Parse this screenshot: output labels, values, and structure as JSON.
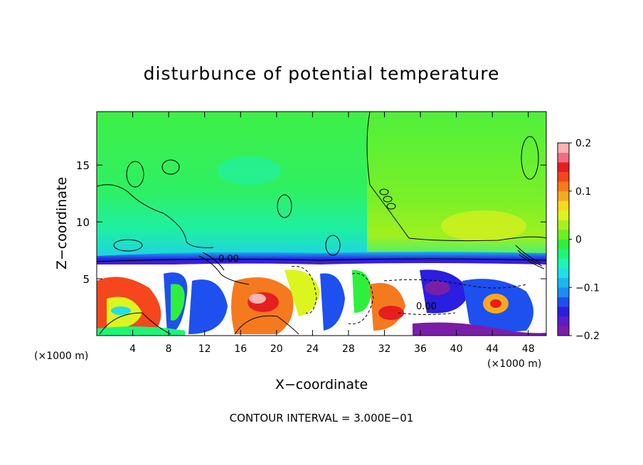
{
  "chart_data": {
    "type": "heatmap",
    "title": "disturbunce of potential temperature",
    "xlabel": "X−coordinate",
    "ylabel": "Z−coordinate",
    "x_unit": "(×1000 m)",
    "x_unit_left": "(×1000 m)",
    "x_ticks": [
      4,
      8,
      12,
      16,
      20,
      24,
      28,
      32,
      36,
      40,
      44,
      48
    ],
    "x_tick_labels": [
      "4",
      "8",
      "12",
      "16",
      "20",
      "24",
      "28",
      "32",
      "36",
      "40",
      "44",
      "48"
    ],
    "y_ticks": [
      5,
      10,
      15
    ],
    "y_tick_labels": [
      "5",
      "10",
      "15"
    ],
    "xlim": [
      0,
      50
    ],
    "ylim": [
      0,
      19.7
    ],
    "colorbar": {
      "min": -0.2,
      "max": 0.2,
      "ticks": [
        -0.2,
        -0.1,
        0,
        0.1,
        0.2
      ],
      "tick_labels": [
        "−0.2",
        "−0.1",
        "0",
        "0.1",
        "0.2"
      ],
      "colors": [
        "#7a1ea8",
        "#5a1ec8",
        "#2a1ee0",
        "#1e50f0",
        "#1e8cf5",
        "#19b8f0",
        "#1ee0e6",
        "#1ef5b4",
        "#1ef578",
        "#2ef03c",
        "#6ef01e",
        "#aaf01e",
        "#dcf51e",
        "#f5dc1e",
        "#f5aa1e",
        "#f57a1e",
        "#f5461e",
        "#e61e1e",
        "#f06e82",
        "#fab4b4"
      ]
    },
    "contour_labels": [
      {
        "text": "0.00",
        "x": 14.2,
        "z": 6.9
      },
      {
        "text": "0.00",
        "x": 37.0,
        "z": 2.6
      }
    ],
    "footer": "CONTOUR INTERVAL = 3.000E−01",
    "field_summary": [
      {
        "region": "upper layer z 7–19.7, x 0–30",
        "value": -0.01
      },
      {
        "region": "upper layer z 7–19.7, x 30–50",
        "value": 0.02
      },
      {
        "region": "band z 6.5–7.3",
        "value": -0.1
      },
      {
        "region": "lower layer z 0–6.5",
        "value_range": [
          -0.2,
          0.2
        ]
      }
    ]
  }
}
